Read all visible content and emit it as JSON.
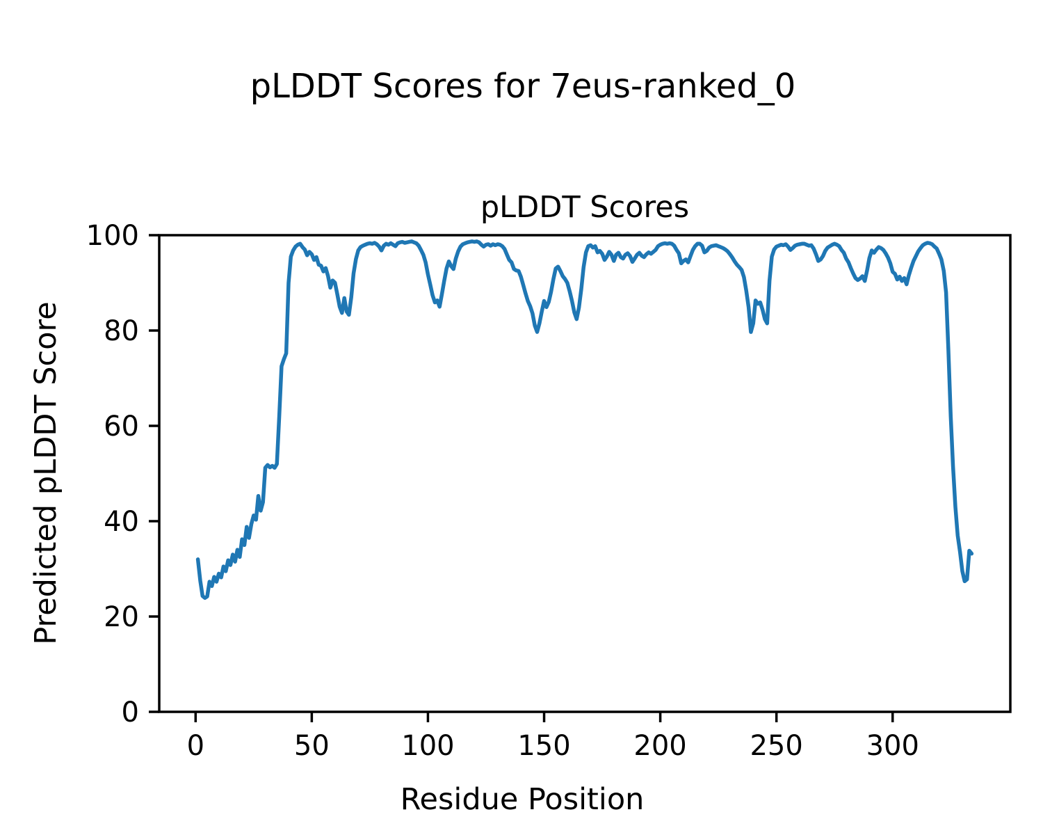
{
  "figure": {
    "title": "pLDDT Scores for 7eus-ranked_0",
    "background_color": "#ffffff",
    "text_color": "#000000"
  },
  "chart_data": {
    "type": "line",
    "title": "pLDDT Scores",
    "xlabel": "Residue Position",
    "ylabel": "Predicted pLDDT Score",
    "x_ticks": [
      0,
      50,
      100,
      150,
      200,
      250,
      300
    ],
    "y_ticks": [
      0,
      20,
      40,
      60,
      80,
      100
    ],
    "xlim": [
      -15.65,
      350.65
    ],
    "ylim": [
      0,
      100
    ],
    "grid": false,
    "legend": null,
    "line_color": "#1f77b4",
    "line_width": 5.5,
    "spine_color": "#000000",
    "series_name": "pLDDT",
    "x_start": 1,
    "x_step": 1,
    "values": [
      32.0,
      27.5,
      24.3,
      23.9,
      24.2,
      27.3,
      26.4,
      28.3,
      27.3,
      29.0,
      28.2,
      30.5,
      29.5,
      31.8,
      30.8,
      33.0,
      31.5,
      34.0,
      32.5,
      36.2,
      35.0,
      38.8,
      36.5,
      39.4,
      41.2,
      40.3,
      45.3,
      42.2,
      44.0,
      51.2,
      51.8,
      51.3,
      51.6,
      51.2,
      52.0,
      62.0,
      72.5,
      74.0,
      75.2,
      90.0,
      95.5,
      96.8,
      97.6,
      98.0,
      98.2,
      97.5,
      97.0,
      95.8,
      96.5,
      96.0,
      94.8,
      95.4,
      93.8,
      93.6,
      92.4,
      93.1,
      91.4,
      89.0,
      90.5,
      90.0,
      87.6,
      85.0,
      83.7,
      86.8,
      84.0,
      83.3,
      87.0,
      92.0,
      95.0,
      96.8,
      97.5,
      97.8,
      98.0,
      98.2,
      98.3,
      98.2,
      98.4,
      98.1,
      97.6,
      96.8,
      97.8,
      98.2,
      98.0,
      98.3,
      98.0,
      97.7,
      98.3,
      98.5,
      98.6,
      98.4,
      98.5,
      98.6,
      98.7,
      98.5,
      98.3,
      97.8,
      96.9,
      95.9,
      94.3,
      91.8,
      89.6,
      87.4,
      85.9,
      86.3,
      85.0,
      87.6,
      90.4,
      93.0,
      94.5,
      93.5,
      92.9,
      95.1,
      96.6,
      97.6,
      98.1,
      98.3,
      98.5,
      98.6,
      98.7,
      98.6,
      98.7,
      98.5,
      98.0,
      97.6,
      98.0,
      98.1,
      97.8,
      98.1,
      97.9,
      98.1,
      98.0,
      97.7,
      97.1,
      95.9,
      94.8,
      94.3,
      92.9,
      92.6,
      92.5,
      91.3,
      89.6,
      87.8,
      86.2,
      85.1,
      83.6,
      81.0,
      79.7,
      81.5,
      84.0,
      86.2,
      84.9,
      86.0,
      88.1,
      90.8,
      93.0,
      93.4,
      92.5,
      91.4,
      90.8,
      90.0,
      88.2,
      86.2,
      83.8,
      82.4,
      84.8,
      88.7,
      93.3,
      96.4,
      97.7,
      97.9,
      97.4,
      97.7,
      96.4,
      96.7,
      96.1,
      94.8,
      95.5,
      96.5,
      95.9,
      94.6,
      95.9,
      96.3,
      95.4,
      95.1,
      95.9,
      96.2,
      95.6,
      94.4,
      95.1,
      95.9,
      96.3,
      95.7,
      95.4,
      96.0,
      96.4,
      96.1,
      96.5,
      96.9,
      97.7,
      98.0,
      98.2,
      98.3,
      98.2,
      98.3,
      98.2,
      97.8,
      96.9,
      96.2,
      94.1,
      94.6,
      94.9,
      94.3,
      95.6,
      96.9,
      97.7,
      98.2,
      98.2,
      97.8,
      96.4,
      96.7,
      97.4,
      97.7,
      97.8,
      97.9,
      97.7,
      97.5,
      97.3,
      97.0,
      96.6,
      96.0,
      95.3,
      94.5,
      93.8,
      93.3,
      92.7,
      91.2,
      88.4,
      84.9,
      79.7,
      81.5,
      86.3,
      85.6,
      85.9,
      84.4,
      82.4,
      81.5,
      90.5,
      95.5,
      97.0,
      97.6,
      97.8,
      98.0,
      97.9,
      98.1,
      97.6,
      96.9,
      97.3,
      97.8,
      98.0,
      98.1,
      98.2,
      98.2,
      98.0,
      97.8,
      97.9,
      97.2,
      96.0,
      94.6,
      94.9,
      95.6,
      96.7,
      97.4,
      97.7,
      98.0,
      98.2,
      98.0,
      97.7,
      96.9,
      96.3,
      95.1,
      94.3,
      93.1,
      92.0,
      91.0,
      90.6,
      90.9,
      91.4,
      90.4,
      92.6,
      95.2,
      96.8,
      96.3,
      97.0,
      97.5,
      97.3,
      96.9,
      96.2,
      95.3,
      94.1,
      92.3,
      91.9,
      90.7,
      91.3,
      90.4,
      91.0,
      89.7,
      91.6,
      93.2,
      94.6,
      95.6,
      96.6,
      97.3,
      97.9,
      98.2,
      98.4,
      98.3,
      98.1,
      97.6,
      97.2,
      96.1,
      94.9,
      92.5,
      88.0,
      76.0,
      62.0,
      51.5,
      43.0,
      37.0,
      33.5,
      29.5,
      27.4,
      27.8,
      33.8,
      33.2
    ]
  }
}
